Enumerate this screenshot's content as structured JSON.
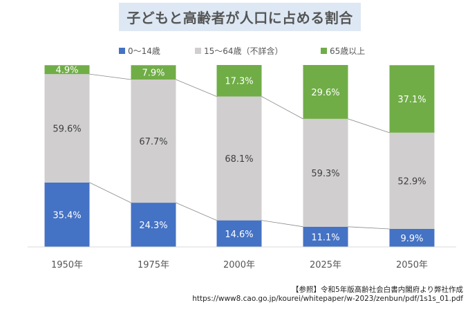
{
  "chart_data": {
    "type": "bar",
    "stacked": true,
    "percent": true,
    "title": "子どもと高齢者が人口に占める割合",
    "categories": [
      "1950年",
      "1975年",
      "2000年",
      "2025年",
      "2050年"
    ],
    "series": [
      {
        "name": "0～14歳",
        "color": "#4472c4",
        "values": [
          35.4,
          24.3,
          14.6,
          11.1,
          9.9
        ],
        "labels": [
          "35.4%",
          "24.3%",
          "14.6%",
          "11.1%",
          "9.9%"
        ]
      },
      {
        "name": "15～64歳（不詳含）",
        "color": "#d0cece",
        "values": [
          59.6,
          67.7,
          68.1,
          59.3,
          52.9
        ],
        "labels": [
          "59.6%",
          "67.7%",
          "68.1%",
          "59.3%",
          "52.9%"
        ]
      },
      {
        "name": "65歳以上",
        "color": "#70ad47",
        "values": [
          4.9,
          7.9,
          17.3,
          29.6,
          37.1
        ],
        "labels": [
          "4.9%",
          "7.9%",
          "17.3%",
          "29.6%",
          "37.1%"
        ]
      }
    ],
    "ylim": [
      0,
      100
    ],
    "legend_position": "top"
  },
  "footnote": {
    "line1": "【参照】令和5年版高齢社会白書内閣府より弊社作成",
    "line2": "https://www8.cao.go.jp/kourei/whitepaper/w-2023/zenbun/pdf/1s1s_01.pdf"
  }
}
